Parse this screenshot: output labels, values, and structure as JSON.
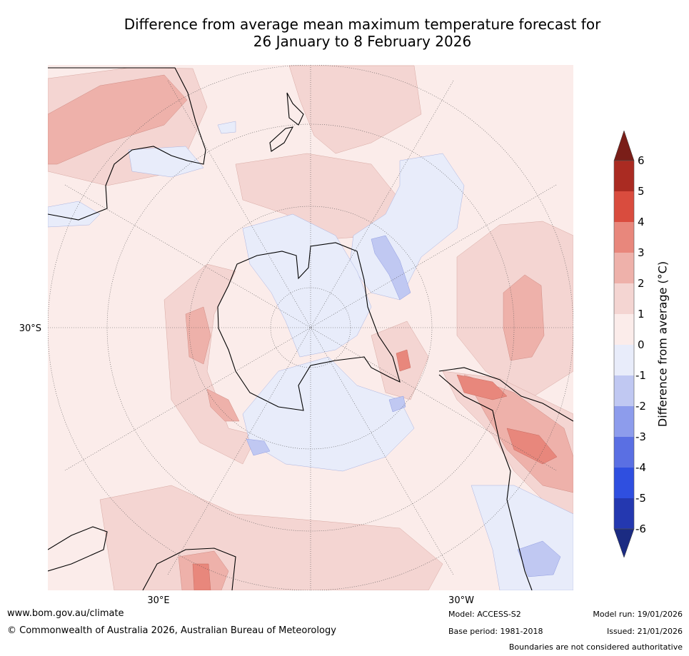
{
  "title": {
    "line1": "Difference from average mean maximum temperature forecast for",
    "line2": "26 January to 8 February 2026"
  },
  "map": {
    "projection": "South polar stereographic",
    "lat_label": "30°S",
    "lon_labels": [
      "30°E",
      "30°W"
    ]
  },
  "colorbar": {
    "title": "Difference from average (°C)",
    "ticks": [
      "6",
      "5",
      "4",
      "3",
      "2",
      "1",
      "0",
      "-1",
      "-2",
      "-3",
      "-4",
      "-5",
      "-6"
    ],
    "colors": [
      "#7a1e18",
      "#aa2b22",
      "#d94c3e",
      "#e8877c",
      "#eeb1aa",
      "#f4d5d2",
      "#fbecea",
      "#e8ecfa",
      "#c0c8f2",
      "#8d9cec",
      "#5a6fe3",
      "#2f4fe0",
      "#2438b0",
      "#1b2b82"
    ]
  },
  "footer": {
    "website": "www.bom.gov.au/climate",
    "copyright": "© Commonwealth of Australia 2026, Australian Bureau of Meteorology",
    "model": "Model: ACCESS-S2",
    "base_period": "Base period: 1981-2018",
    "model_run": "Model run: 19/01/2026",
    "issued": "Issued: 21/01/2026",
    "disclaimer": "Boundaries are not considered authoritative"
  }
}
